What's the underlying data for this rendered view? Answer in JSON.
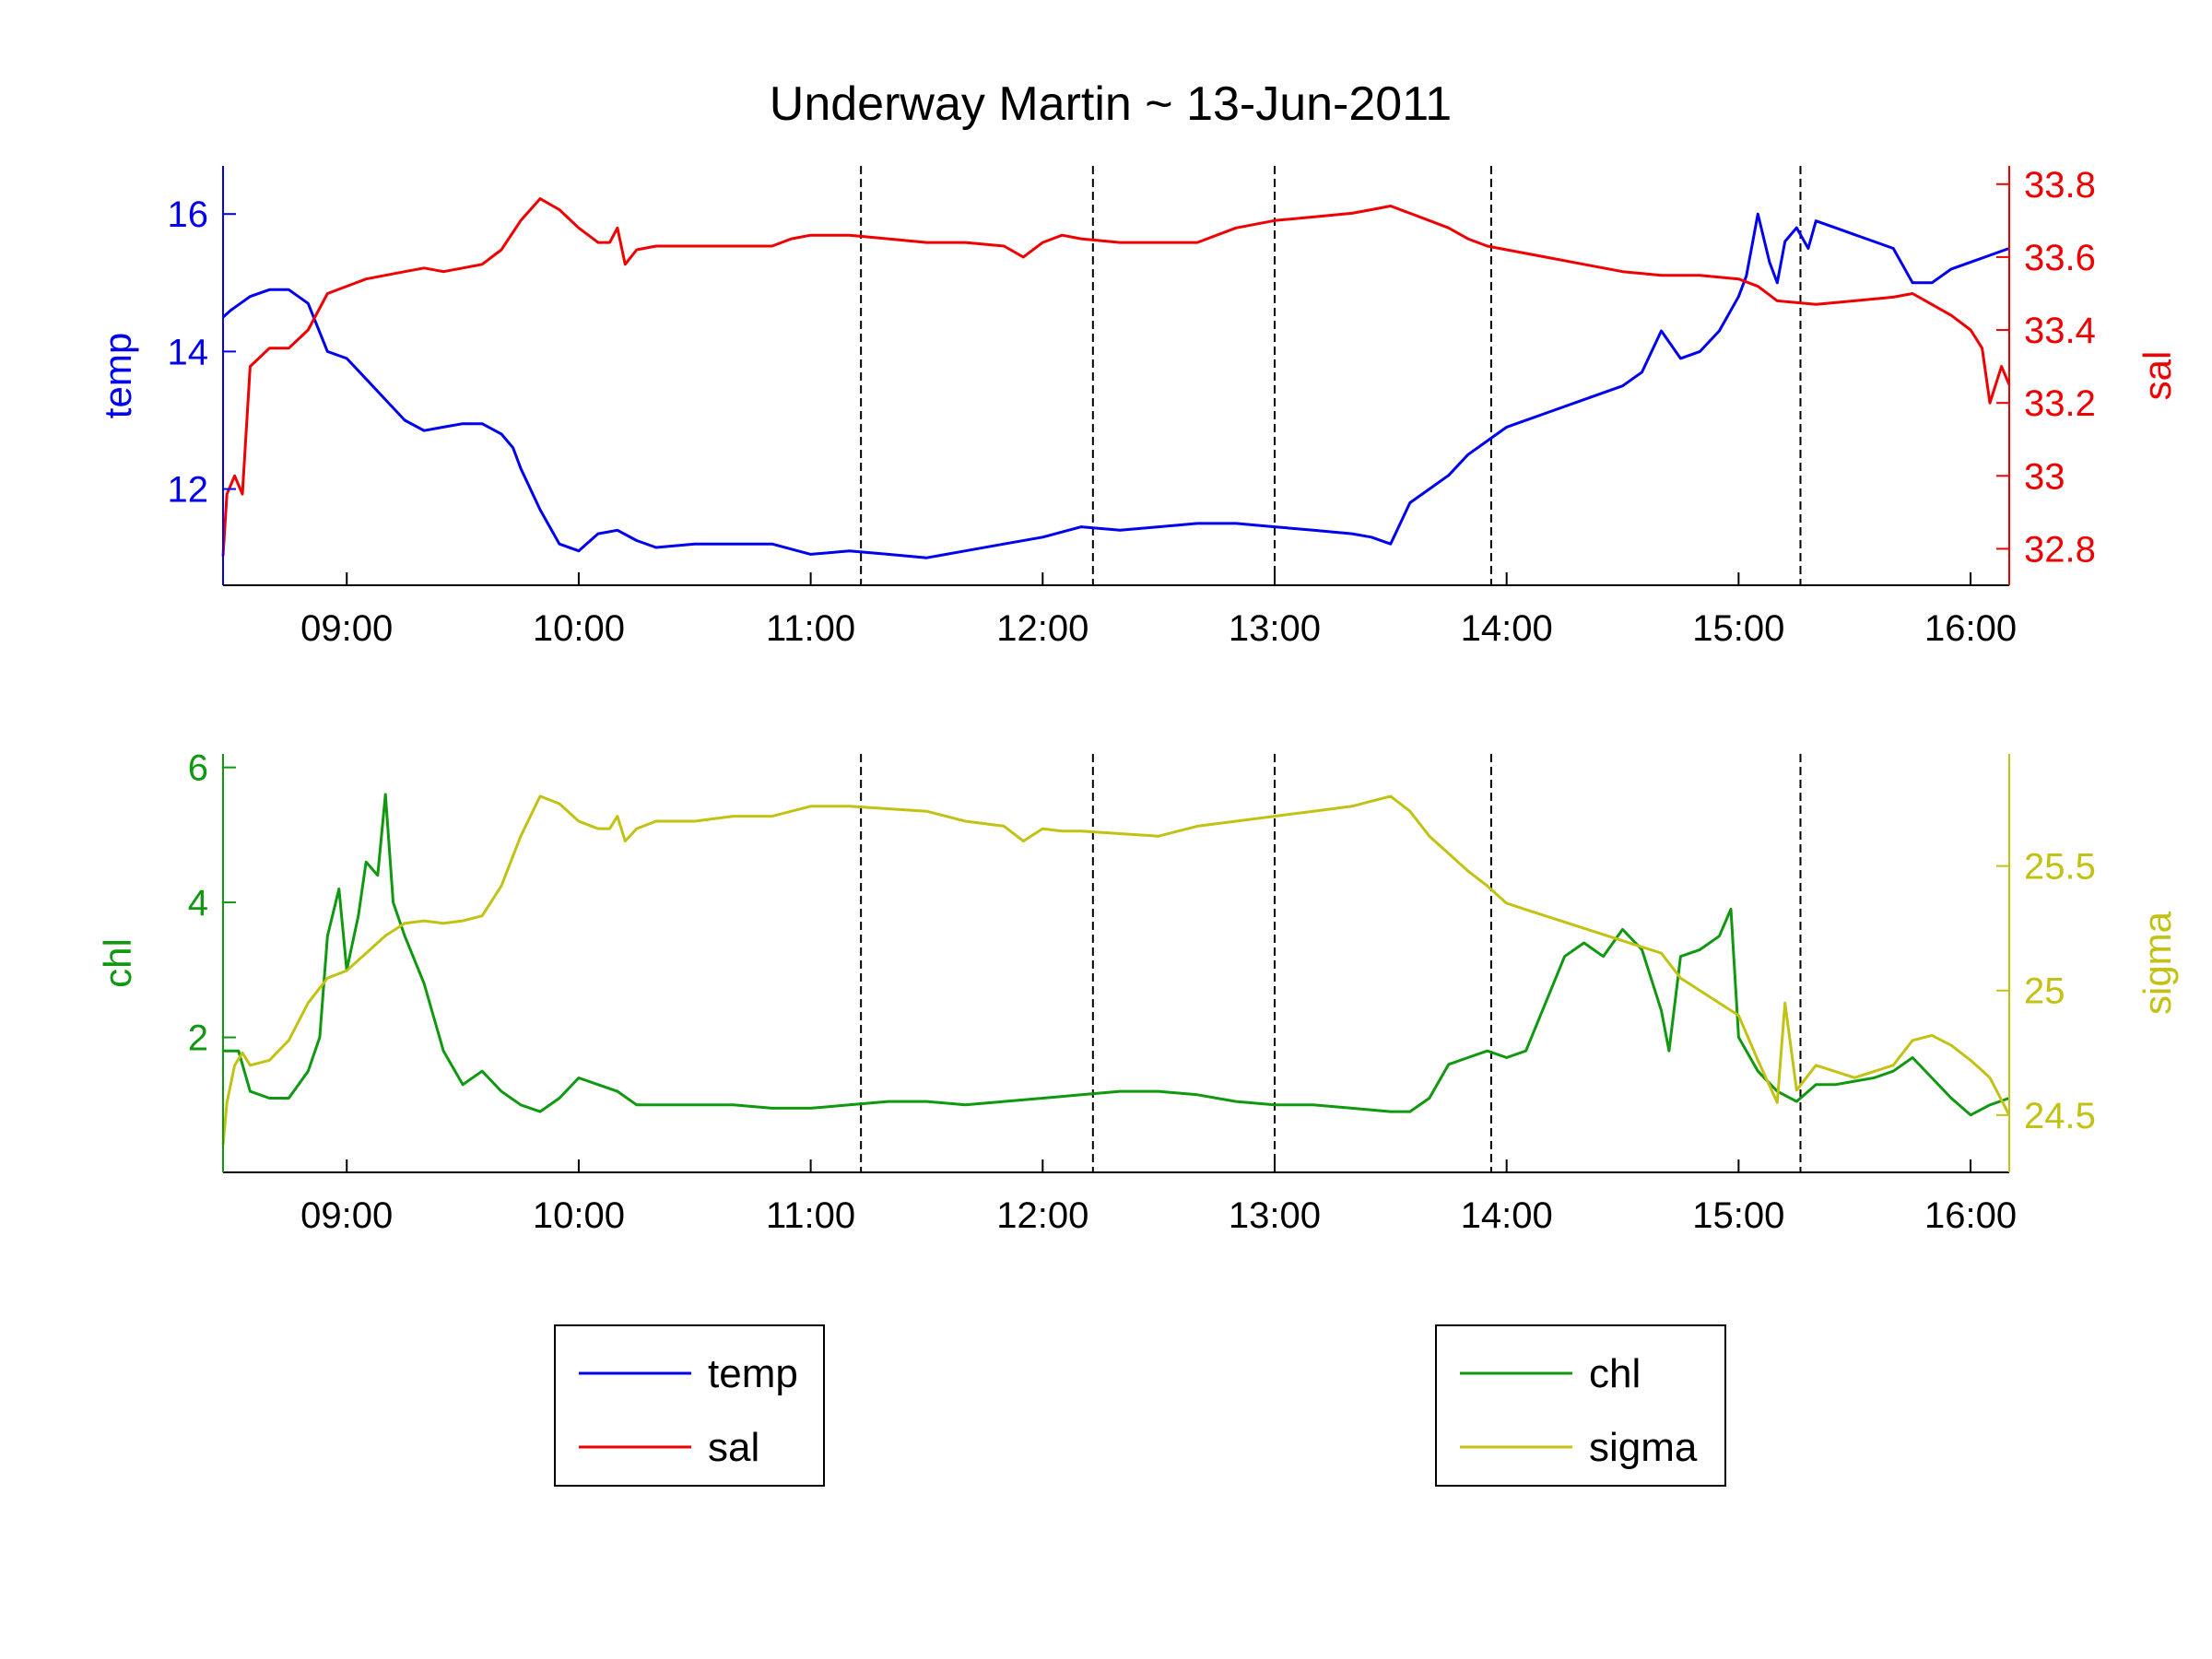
{
  "title": "Underway Martin ~ 13-Jun-2011",
  "colors": {
    "temp": "#0000ee",
    "sal": "#ee0000",
    "chl": "#109810",
    "sigma": "#c2c214",
    "axis": "#000000",
    "marker": "#000000"
  },
  "chart_data": [
    {
      "type": "line",
      "x_unit": "time (hours, 13-Jun-2011)",
      "xlim": [
        "08:28",
        "16:10"
      ],
      "x_ticks": [
        "09:00",
        "10:00",
        "11:00",
        "12:00",
        "13:00",
        "14:00",
        "15:00",
        "16:00"
      ],
      "vertical_markers": [
        "11:13",
        "12:13",
        "13:00",
        "13:56",
        "15:16"
      ],
      "left_axis": {
        "label": "temp",
        "ylim": [
          10.6,
          16.7
        ],
        "ticks": [
          "12",
          "14",
          "16"
        ]
      },
      "right_axis": {
        "label": "sal",
        "ylim": [
          32.7,
          33.85
        ],
        "ticks": [
          "32.8",
          "33",
          "33.2",
          "33.4",
          "33.6",
          "33.8"
        ]
      },
      "series": [
        {
          "name": "temp",
          "axis": "left",
          "x": [
            "08:28",
            "08:30",
            "08:35",
            "08:40",
            "08:45",
            "08:50",
            "08:55",
            "09:00",
            "09:05",
            "09:10",
            "09:15",
            "09:20",
            "09:25",
            "09:30",
            "09:35",
            "09:40",
            "09:43",
            "09:45",
            "09:50",
            "09:55",
            "10:00",
            "10:05",
            "10:10",
            "10:15",
            "10:20",
            "10:30",
            "10:40",
            "10:50",
            "11:00",
            "11:10",
            "11:20",
            "11:30",
            "11:40",
            "11:50",
            "12:00",
            "12:10",
            "12:20",
            "12:30",
            "12:40",
            "12:50",
            "13:00",
            "13:10",
            "13:20",
            "13:25",
            "13:30",
            "13:35",
            "13:40",
            "13:45",
            "13:50",
            "13:55",
            "14:00",
            "14:10",
            "14:20",
            "14:30",
            "14:35",
            "14:40",
            "14:45",
            "14:50",
            "14:55",
            "15:00",
            "15:02",
            "15:05",
            "15:08",
            "15:10",
            "15:12",
            "15:15",
            "15:18",
            "15:20",
            "15:25",
            "15:30",
            "15:35",
            "15:40",
            "15:45",
            "15:50",
            "15:55",
            "16:00",
            "16:05",
            "16:10"
          ],
          "y": [
            14.5,
            14.6,
            14.8,
            14.9,
            14.9,
            14.7,
            14.0,
            13.9,
            13.6,
            13.3,
            13.0,
            12.85,
            12.9,
            12.95,
            12.95,
            12.8,
            12.6,
            12.3,
            11.7,
            11.2,
            11.1,
            11.35,
            11.4,
            11.25,
            11.15,
            11.2,
            11.2,
            11.2,
            11.05,
            11.1,
            11.05,
            11.0,
            11.1,
            11.2,
            11.3,
            11.45,
            11.4,
            11.45,
            11.5,
            11.5,
            11.45,
            11.4,
            11.35,
            11.3,
            11.2,
            11.8,
            12.0,
            12.2,
            12.5,
            12.7,
            12.9,
            13.1,
            13.3,
            13.5,
            13.7,
            14.3,
            13.9,
            14.0,
            14.3,
            14.8,
            15.1,
            16.0,
            15.3,
            15.0,
            15.6,
            15.8,
            15.5,
            15.9,
            15.8,
            15.7,
            15.6,
            15.5,
            15.0,
            15.0,
            15.2,
            15.3,
            15.4,
            15.5
          ]
        },
        {
          "name": "sal",
          "axis": "right",
          "x": [
            "08:28",
            "08:29",
            "08:31",
            "08:33",
            "08:35",
            "08:40",
            "08:45",
            "08:50",
            "08:55",
            "09:00",
            "09:05",
            "09:10",
            "09:15",
            "09:20",
            "09:25",
            "09:30",
            "09:35",
            "09:40",
            "09:45",
            "09:50",
            "09:55",
            "10:00",
            "10:05",
            "10:08",
            "10:10",
            "10:12",
            "10:15",
            "10:20",
            "10:30",
            "10:40",
            "10:50",
            "10:55",
            "11:00",
            "11:10",
            "11:20",
            "11:30",
            "11:40",
            "11:50",
            "11:55",
            "12:00",
            "12:05",
            "12:10",
            "12:20",
            "12:30",
            "12:40",
            "12:50",
            "13:00",
            "13:10",
            "13:20",
            "13:25",
            "13:30",
            "13:35",
            "13:40",
            "13:45",
            "13:50",
            "13:55",
            "14:00",
            "14:10",
            "14:20",
            "14:30",
            "14:40",
            "14:50",
            "15:00",
            "15:05",
            "15:10",
            "15:20",
            "15:30",
            "15:40",
            "15:45",
            "15:50",
            "15:55",
            "16:00",
            "16:03",
            "16:05",
            "16:08",
            "16:10"
          ],
          "y": [
            32.78,
            32.95,
            33.0,
            32.95,
            33.3,
            33.35,
            33.35,
            33.4,
            33.5,
            33.52,
            33.54,
            33.55,
            33.56,
            33.57,
            33.56,
            33.57,
            33.58,
            33.62,
            33.7,
            33.76,
            33.73,
            33.68,
            33.64,
            33.64,
            33.68,
            33.58,
            33.62,
            33.63,
            33.63,
            33.63,
            33.63,
            33.65,
            33.66,
            33.66,
            33.65,
            33.64,
            33.64,
            33.63,
            33.6,
            33.64,
            33.66,
            33.65,
            33.64,
            33.64,
            33.64,
            33.68,
            33.7,
            33.71,
            33.72,
            33.73,
            33.74,
            33.72,
            33.7,
            33.68,
            33.65,
            33.63,
            33.62,
            33.6,
            33.58,
            33.56,
            33.55,
            33.55,
            33.54,
            33.52,
            33.48,
            33.47,
            33.48,
            33.49,
            33.5,
            33.47,
            33.44,
            33.4,
            33.35,
            33.2,
            33.3,
            33.25
          ]
        }
      ]
    },
    {
      "type": "line",
      "x_unit": "time (hours, 13-Jun-2011)",
      "xlim": [
        "08:28",
        "16:10"
      ],
      "x_ticks": [
        "09:00",
        "10:00",
        "11:00",
        "12:00",
        "13:00",
        "14:00",
        "15:00",
        "16:00"
      ],
      "vertical_markers": [
        "11:13",
        "12:13",
        "13:00",
        "13:56",
        "15:16"
      ],
      "left_axis": {
        "label": "chl",
        "ylim": [
          0.0,
          6.2
        ],
        "ticks": [
          "2",
          "4",
          "6"
        ]
      },
      "right_axis": {
        "label": "sigma",
        "ylim": [
          24.27,
          25.95
        ],
        "ticks": [
          "24.5",
          "25",
          "25.5"
        ]
      },
      "series": [
        {
          "name": "chl",
          "axis": "left",
          "x": [
            "08:28",
            "08:32",
            "08:35",
            "08:40",
            "08:45",
            "08:50",
            "08:53",
            "08:55",
            "08:58",
            "09:00",
            "09:03",
            "09:05",
            "09:08",
            "09:10",
            "09:12",
            "09:15",
            "09:20",
            "09:25",
            "09:30",
            "09:35",
            "09:40",
            "09:45",
            "09:50",
            "09:55",
            "10:00",
            "10:05",
            "10:10",
            "10:15",
            "10:20",
            "10:30",
            "10:40",
            "10:50",
            "11:00",
            "11:10",
            "11:20",
            "11:30",
            "11:40",
            "11:50",
            "12:00",
            "12:10",
            "12:20",
            "12:30",
            "12:40",
            "12:50",
            "13:00",
            "13:10",
            "13:20",
            "13:30",
            "13:35",
            "13:40",
            "13:45",
            "13:50",
            "13:55",
            "14:00",
            "14:05",
            "14:10",
            "14:15",
            "14:20",
            "14:25",
            "14:30",
            "14:35",
            "14:40",
            "14:42",
            "14:45",
            "14:50",
            "14:55",
            "14:58",
            "15:00",
            "15:05",
            "15:10",
            "15:15",
            "15:20",
            "15:25",
            "15:30",
            "15:35",
            "15:40",
            "15:45",
            "15:50",
            "15:55",
            "16:00",
            "16:05",
            "16:10"
          ],
          "y": [
            1.8,
            1.8,
            1.2,
            1.1,
            1.1,
            1.5,
            2.0,
            3.5,
            4.2,
            3.0,
            3.8,
            4.6,
            4.4,
            5.6,
            4.0,
            3.5,
            2.8,
            1.8,
            1.3,
            1.5,
            1.2,
            1.0,
            0.9,
            1.1,
            1.4,
            1.3,
            1.2,
            1.0,
            1.0,
            1.0,
            1.0,
            0.95,
            0.95,
            1.0,
            1.05,
            1.05,
            1.0,
            1.05,
            1.1,
            1.15,
            1.2,
            1.2,
            1.15,
            1.05,
            1.0,
            1.0,
            0.95,
            0.9,
            0.9,
            1.1,
            1.6,
            1.7,
            1.8,
            1.7,
            1.8,
            2.5,
            3.2,
            3.4,
            3.2,
            3.6,
            3.3,
            2.4,
            1.8,
            3.2,
            3.3,
            3.5,
            3.9,
            2.0,
            1.5,
            1.2,
            1.05,
            1.3,
            1.3,
            1.35,
            1.4,
            1.5,
            1.7,
            1.4,
            1.1,
            0.85,
            1.0,
            1.1
          ]
        },
        {
          "name": "sigma",
          "axis": "right",
          "x": [
            "08:28",
            "08:29",
            "08:31",
            "08:33",
            "08:35",
            "08:40",
            "08:45",
            "08:50",
            "08:55",
            "09:00",
            "09:05",
            "09:10",
            "09:15",
            "09:20",
            "09:25",
            "09:30",
            "09:35",
            "09:40",
            "09:45",
            "09:50",
            "09:55",
            "10:00",
            "10:05",
            "10:08",
            "10:10",
            "10:12",
            "10:15",
            "10:20",
            "10:30",
            "10:40",
            "10:50",
            "10:55",
            "11:00",
            "11:10",
            "11:20",
            "11:30",
            "11:40",
            "11:50",
            "11:55",
            "12:00",
            "12:05",
            "12:10",
            "12:20",
            "12:30",
            "12:40",
            "12:50",
            "13:00",
            "13:10",
            "13:20",
            "13:25",
            "13:30",
            "13:35",
            "13:40",
            "13:45",
            "13:50",
            "13:55",
            "14:00",
            "14:10",
            "14:20",
            "14:30",
            "14:40",
            "14:45",
            "14:50",
            "15:00",
            "15:05",
            "15:10",
            "15:12",
            "15:15",
            "15:20",
            "15:30",
            "15:40",
            "15:45",
            "15:50",
            "15:55",
            "16:00",
            "16:05",
            "16:10"
          ],
          "y": [
            24.38,
            24.55,
            24.7,
            24.75,
            24.7,
            24.72,
            24.8,
            24.95,
            25.05,
            25.08,
            25.15,
            25.22,
            25.27,
            25.28,
            25.27,
            25.28,
            25.3,
            25.42,
            25.62,
            25.78,
            25.75,
            25.68,
            25.65,
            25.65,
            25.7,
            25.6,
            25.65,
            25.68,
            25.68,
            25.7,
            25.7,
            25.72,
            25.74,
            25.74,
            25.73,
            25.72,
            25.68,
            25.66,
            25.6,
            25.65,
            25.64,
            25.64,
            25.63,
            25.62,
            25.66,
            25.68,
            25.7,
            25.72,
            25.74,
            25.76,
            25.78,
            25.72,
            25.62,
            25.55,
            25.48,
            25.42,
            25.35,
            25.3,
            25.25,
            25.2,
            25.15,
            25.05,
            25.0,
            24.9,
            24.72,
            24.55,
            24.95,
            24.6,
            24.7,
            24.65,
            24.7,
            24.8,
            24.82,
            24.78,
            24.72,
            24.65,
            24.5
          ]
        }
      ]
    }
  ],
  "legends": [
    {
      "items": [
        "temp",
        "sal"
      ]
    },
    {
      "items": [
        "chl",
        "sigma"
      ]
    }
  ]
}
